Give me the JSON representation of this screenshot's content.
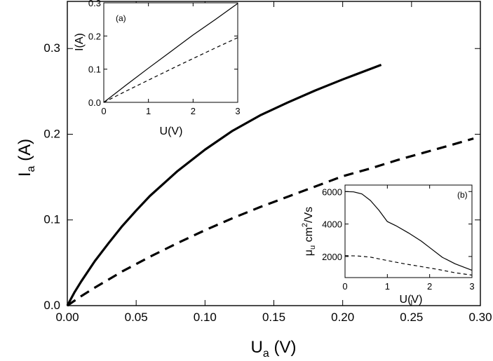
{
  "chart_data": [
    {
      "id": "main",
      "type": "line",
      "xlabel": {
        "main": "U",
        "sub": "a",
        "unit": " (V)"
      },
      "ylabel": {
        "main": "I",
        "sub": "a",
        "unit": " (A)"
      },
      "xlim": [
        0.0,
        0.3
      ],
      "ylim": [
        0.0,
        0.355
      ],
      "xticks": [
        0.0,
        0.05,
        0.1,
        0.15,
        0.2,
        0.25,
        0.3
      ],
      "xtick_labels": [
        "0.00",
        "0.05",
        "0.10",
        "0.15",
        "0.20",
        "0.25",
        "0.30"
      ],
      "yticks": [
        0.0,
        0.1,
        0.2,
        0.3
      ],
      "ytick_labels": [
        "0.0",
        "0.1",
        "0.2",
        "0.3"
      ],
      "grid": false,
      "series": [
        {
          "style": "solid",
          "x": [
            0.0,
            0.005,
            0.01,
            0.02,
            0.03,
            0.04,
            0.05,
            0.06,
            0.08,
            0.1,
            0.12,
            0.14,
            0.16,
            0.18,
            0.2,
            0.228
          ],
          "y": [
            0.0,
            0.015,
            0.028,
            0.052,
            0.073,
            0.093,
            0.111,
            0.128,
            0.157,
            0.182,
            0.204,
            0.222,
            0.237,
            0.251,
            0.264,
            0.281
          ]
        },
        {
          "style": "dashed",
          "x": [
            0.0,
            0.01,
            0.02,
            0.04,
            0.06,
            0.08,
            0.1,
            0.12,
            0.14,
            0.16,
            0.18,
            0.2,
            0.22,
            0.24,
            0.26,
            0.28,
            0.295
          ],
          "y": [
            0.0,
            0.011,
            0.021,
            0.04,
            0.057,
            0.073,
            0.088,
            0.102,
            0.115,
            0.127,
            0.139,
            0.151,
            0.16,
            0.17,
            0.179,
            0.188,
            0.195
          ]
        }
      ]
    },
    {
      "id": "inset_a",
      "type": "line",
      "annotation": "(a)",
      "xlabel": "U(V)",
      "ylabel": "I(A)",
      "xlim": [
        0,
        3
      ],
      "ylim": [
        0,
        0.3
      ],
      "xticks": [
        0,
        1,
        2,
        3
      ],
      "xtick_labels": [
        "0",
        "1",
        "2",
        "3"
      ],
      "yticks": [
        0.0,
        0.1,
        0.2,
        0.3
      ],
      "ytick_labels": [
        "0.0",
        "0.1",
        "0.2",
        "0.3"
      ],
      "series": [
        {
          "style": "solid",
          "x": [
            0,
            0.5,
            1,
            1.5,
            2,
            2.5,
            3
          ],
          "y": [
            0,
            0.052,
            0.103,
            0.153,
            0.203,
            0.25,
            0.298
          ]
        },
        {
          "style": "dashed",
          "x": [
            0,
            0.5,
            1,
            1.5,
            2,
            2.5,
            3
          ],
          "y": [
            0,
            0.034,
            0.067,
            0.1,
            0.132,
            0.164,
            0.195
          ]
        }
      ]
    },
    {
      "id": "inset_b",
      "type": "line",
      "annotation": "(b)",
      "xlabel": "U(V)",
      "ylabel": {
        "mu": "μ",
        "sub": "u",
        "unit": " cm",
        "sup": "2",
        "tail": "/Vs"
      },
      "xlim": [
        0,
        3
      ],
      "ylim": [
        700,
        6400
      ],
      "xticks": [
        0,
        1,
        2,
        3
      ],
      "xtick_labels": [
        "0",
        "1",
        "2",
        "3"
      ],
      "yticks": [
        2000,
        4000,
        6000
      ],
      "ytick_labels": [
        "2000",
        "4000",
        "6000"
      ],
      "series": [
        {
          "style": "solid",
          "x": [
            0,
            0.2,
            0.4,
            0.6,
            0.8,
            1.0,
            1.2,
            1.5,
            1.8,
            2.0,
            2.3,
            2.6,
            3.0
          ],
          "y": [
            6000,
            5980,
            5850,
            5450,
            4850,
            4150,
            3900,
            3450,
            2950,
            2550,
            1950,
            1550,
            1150
          ]
        },
        {
          "style": "dashed",
          "x": [
            0,
            0.3,
            0.6,
            1.0,
            1.4,
            1.8,
            2.2,
            2.6,
            3.0
          ],
          "y": [
            2050,
            2030,
            1960,
            1750,
            1550,
            1380,
            1200,
            1000,
            850
          ]
        }
      ]
    }
  ]
}
